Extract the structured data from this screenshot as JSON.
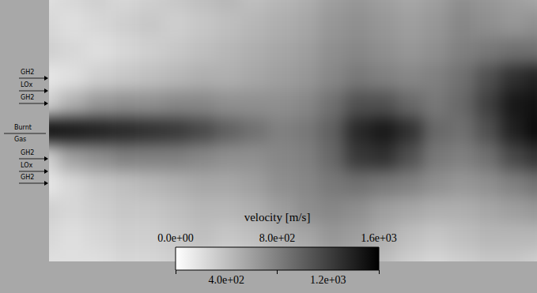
{
  "chart_data": {
    "type": "heatmap",
    "tick_labels": false,
    "cells": [
      [
        200,
        250,
        300,
        250,
        300,
        350,
        400,
        450,
        400,
        450,
        500,
        600,
        650,
        600,
        550,
        600,
        700,
        650,
        600,
        550
      ],
      [
        250,
        200,
        250,
        300,
        350,
        300,
        350,
        400,
        450,
        500,
        550,
        650,
        700,
        650,
        600,
        650,
        750,
        700,
        650,
        700
      ],
      [
        300,
        250,
        200,
        250,
        300,
        350,
        400,
        450,
        500,
        550,
        600,
        700,
        750,
        700,
        650,
        700,
        800,
        850,
        900,
        900
      ],
      [
        150,
        200,
        300,
        350,
        400,
        450,
        500,
        500,
        550,
        600,
        650,
        750,
        850,
        800,
        750,
        800,
        900,
        1100,
        1300,
        1400
      ],
      [
        300,
        500,
        650,
        700,
        700,
        750,
        750,
        700,
        700,
        700,
        750,
        900,
        1100,
        1100,
        950,
        850,
        950,
        1200,
        1450,
        1500
      ],
      [
        1500,
        1450,
        1400,
        1350,
        1300,
        1250,
        1150,
        1000,
        900,
        800,
        850,
        1000,
        1350,
        1450,
        1300,
        950,
        900,
        1100,
        1400,
        1550
      ],
      [
        300,
        600,
        700,
        800,
        800,
        800,
        750,
        700,
        700,
        750,
        800,
        950,
        1250,
        1300,
        1100,
        850,
        800,
        900,
        1150,
        1300
      ],
      [
        150,
        250,
        350,
        400,
        450,
        500,
        550,
        550,
        600,
        700,
        750,
        850,
        900,
        850,
        800,
        700,
        650,
        700,
        800,
        900
      ],
      [
        300,
        250,
        300,
        350,
        350,
        400,
        450,
        450,
        500,
        600,
        700,
        750,
        700,
        600,
        550,
        500,
        500,
        550,
        600,
        650
      ],
      [
        250,
        200,
        250,
        300,
        300,
        350,
        400,
        350,
        400,
        500,
        550,
        650,
        600,
        500,
        400,
        350,
        400,
        450,
        450,
        450
      ],
      [
        200,
        200,
        200,
        250,
        250,
        300,
        300,
        250,
        300,
        350,
        450,
        550,
        500,
        400,
        300,
        250,
        300,
        350,
        350,
        300
      ]
    ],
    "colorbar": {
      "title": "velocity [m/s]",
      "range": [
        0,
        1600
      ],
      "ticks": [
        {
          "value": 0,
          "label": "0.0e+00"
        },
        {
          "value": 400,
          "label": "4.0e+02"
        },
        {
          "value": 800,
          "label": "8.0e+02"
        },
        {
          "value": 1200,
          "label": "1.2e+03"
        },
        {
          "value": 1600,
          "label": "1.6e+03"
        }
      ]
    },
    "annotations": [
      "GH2",
      "LOx",
      "GH2",
      "Burnt Gas",
      "GH2",
      "LOx",
      "GH2"
    ]
  }
}
